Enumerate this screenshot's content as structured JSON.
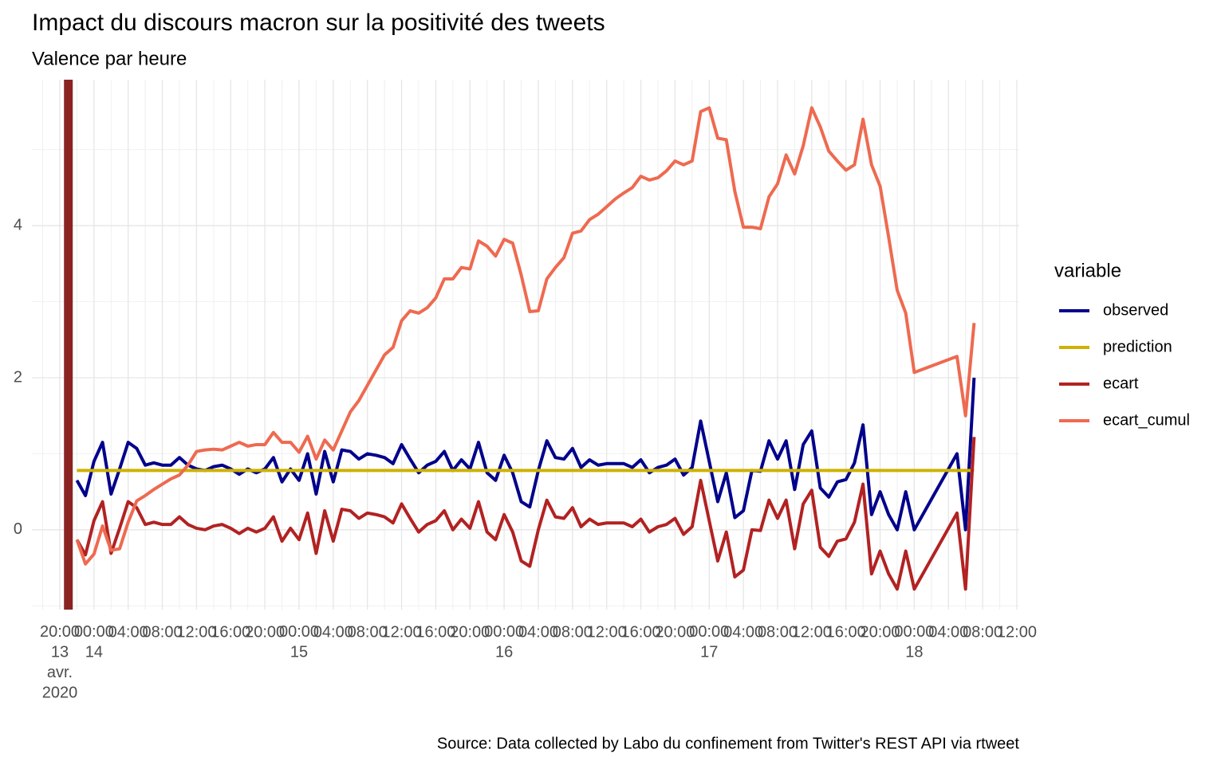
{
  "chart_data": {
    "type": "line",
    "title": "Impact du discours macron sur la positivité des tweets",
    "subtitle": "Valence par heure",
    "caption": "Source: Data collected by Labo du confinement from Twitter's REST API via rtweet",
    "legend_title": "variable",
    "legend": "right",
    "grid": true,
    "x": [
      "2020-04-13 22:00",
      "2020-04-13 23:00",
      "2020-04-14 00:00",
      "2020-04-14 01:00",
      "2020-04-14 02:00",
      "2020-04-14 03:00",
      "2020-04-14 04:00",
      "2020-04-14 05:00",
      "2020-04-14 06:00",
      "2020-04-14 07:00",
      "2020-04-14 08:00",
      "2020-04-14 09:00",
      "2020-04-14 10:00",
      "2020-04-14 11:00",
      "2020-04-14 12:00",
      "2020-04-14 13:00",
      "2020-04-14 14:00",
      "2020-04-14 15:00",
      "2020-04-14 16:00",
      "2020-04-14 17:00",
      "2020-04-14 18:00",
      "2020-04-14 19:00",
      "2020-04-14 20:00",
      "2020-04-14 21:00",
      "2020-04-14 22:00",
      "2020-04-14 23:00",
      "2020-04-15 00:00",
      "2020-04-15 01:00",
      "2020-04-15 02:00",
      "2020-04-15 03:00",
      "2020-04-15 04:00",
      "2020-04-15 05:00",
      "2020-04-15 06:00",
      "2020-04-15 07:00",
      "2020-04-15 08:00",
      "2020-04-15 09:00",
      "2020-04-15 10:00",
      "2020-04-15 11:00",
      "2020-04-15 12:00",
      "2020-04-15 13:00",
      "2020-04-15 14:00",
      "2020-04-15 15:00",
      "2020-04-15 16:00",
      "2020-04-15 17:00",
      "2020-04-15 18:00",
      "2020-04-15 19:00",
      "2020-04-15 20:00",
      "2020-04-15 21:00",
      "2020-04-15 22:00",
      "2020-04-15 23:00",
      "2020-04-16 00:00",
      "2020-04-16 01:00",
      "2020-04-16 02:00",
      "2020-04-16 03:00",
      "2020-04-16 04:00",
      "2020-04-16 05:00",
      "2020-04-16 06:00",
      "2020-04-16 07:00",
      "2020-04-16 08:00",
      "2020-04-16 09:00",
      "2020-04-16 10:00",
      "2020-04-16 11:00",
      "2020-04-16 12:00",
      "2020-04-16 13:00",
      "2020-04-16 14:00",
      "2020-04-16 15:00",
      "2020-04-16 16:00",
      "2020-04-16 17:00",
      "2020-04-16 18:00",
      "2020-04-16 19:00",
      "2020-04-16 20:00",
      "2020-04-16 21:00",
      "2020-04-16 22:00",
      "2020-04-16 23:00",
      "2020-04-17 00:00",
      "2020-04-17 01:00",
      "2020-04-17 02:00",
      "2020-04-17 03:00",
      "2020-04-17 04:00",
      "2020-04-17 05:00",
      "2020-04-17 06:00",
      "2020-04-17 07:00",
      "2020-04-17 08:00",
      "2020-04-17 09:00",
      "2020-04-17 10:00",
      "2020-04-17 11:00",
      "2020-04-17 12:00",
      "2020-04-17 13:00",
      "2020-04-17 14:00",
      "2020-04-17 15:00",
      "2020-04-17 16:00",
      "2020-04-17 17:00",
      "2020-04-17 18:00",
      "2020-04-17 19:00",
      "2020-04-17 20:00",
      "2020-04-17 21:00",
      "2020-04-17 22:00",
      "2020-04-17 23:00",
      "2020-04-18 00:00",
      "2020-04-18 05:00",
      "2020-04-18 06:00",
      "2020-04-18 07:00"
    ],
    "series": [
      {
        "name": "observed",
        "color": "#00008B",
        "values": [
          0.65,
          0.45,
          0.9,
          1.15,
          0.47,
          0.8,
          1.15,
          1.07,
          0.85,
          0.88,
          0.85,
          0.85,
          0.95,
          0.85,
          0.8,
          0.78,
          0.83,
          0.85,
          0.8,
          0.73,
          0.8,
          0.75,
          0.8,
          0.95,
          0.63,
          0.8,
          0.65,
          1.0,
          0.47,
          1.03,
          0.63,
          1.05,
          1.03,
          0.93,
          1.0,
          0.98,
          0.95,
          0.87,
          1.12,
          0.93,
          0.75,
          0.85,
          0.9,
          1.03,
          0.78,
          0.92,
          0.8,
          1.15,
          0.75,
          0.65,
          0.98,
          0.75,
          0.37,
          0.3,
          0.78,
          1.17,
          0.95,
          0.93,
          1.07,
          0.82,
          0.92,
          0.85,
          0.87,
          0.87,
          0.87,
          0.82,
          0.92,
          0.75,
          0.82,
          0.85,
          0.93,
          0.72,
          0.82,
          1.43,
          0.9,
          0.37,
          0.75,
          0.16,
          0.25,
          0.78,
          0.77,
          1.17,
          0.93,
          1.17,
          0.53,
          1.12,
          1.3,
          0.55,
          0.43,
          0.63,
          0.66,
          0.88,
          1.38,
          0.2,
          0.5,
          0.2,
          0.0,
          0.5,
          0.0,
          1.0,
          0.0,
          2.0
        ]
      },
      {
        "name": "prediction",
        "color": "#CDB200",
        "values": [
          0.78,
          0.78,
          0.78,
          0.78,
          0.78,
          0.78,
          0.78,
          0.78,
          0.78,
          0.78,
          0.78,
          0.78,
          0.78,
          0.78,
          0.78,
          0.78,
          0.78,
          0.78,
          0.78,
          0.78,
          0.78,
          0.78,
          0.78,
          0.78,
          0.78,
          0.78,
          0.78,
          0.78,
          0.78,
          0.78,
          0.78,
          0.78,
          0.78,
          0.78,
          0.78,
          0.78,
          0.78,
          0.78,
          0.78,
          0.78,
          0.78,
          0.78,
          0.78,
          0.78,
          0.78,
          0.78,
          0.78,
          0.78,
          0.78,
          0.78,
          0.78,
          0.78,
          0.78,
          0.78,
          0.78,
          0.78,
          0.78,
          0.78,
          0.78,
          0.78,
          0.78,
          0.78,
          0.78,
          0.78,
          0.78,
          0.78,
          0.78,
          0.78,
          0.78,
          0.78,
          0.78,
          0.78,
          0.78,
          0.78,
          0.78,
          0.78,
          0.78,
          0.78,
          0.78,
          0.78,
          0.78,
          0.78,
          0.78,
          0.78,
          0.78,
          0.78,
          0.78,
          0.78,
          0.78,
          0.78,
          0.78,
          0.78,
          0.78,
          0.78,
          0.78,
          0.78,
          0.78,
          0.78,
          0.78,
          0.78,
          0.78,
          0.78
        ]
      },
      {
        "name": "ecart",
        "color": "#B22222",
        "values": [
          -0.13,
          -0.33,
          0.12,
          0.37,
          -0.31,
          0.02,
          0.37,
          0.29,
          0.07,
          0.1,
          0.07,
          0.07,
          0.17,
          0.07,
          0.02,
          0,
          0.05,
          0.07,
          0.02,
          -0.05,
          0.02,
          -0.03,
          0.02,
          0.17,
          -0.15,
          0.02,
          -0.13,
          0.22,
          -0.31,
          0.25,
          -0.15,
          0.27,
          0.25,
          0.15,
          0.22,
          0.2,
          0.17,
          0.09,
          0.34,
          0.15,
          -0.03,
          0.07,
          0.12,
          0.25,
          0,
          0.14,
          0.02,
          0.37,
          -0.03,
          -0.13,
          0.2,
          -0.03,
          -0.41,
          -0.48,
          0,
          0.39,
          0.17,
          0.15,
          0.29,
          0.04,
          0.14,
          0.07,
          0.09,
          0.09,
          0.09,
          0.04,
          0.14,
          -0.03,
          0.04,
          0.07,
          0.15,
          -0.06,
          0.04,
          0.65,
          0.12,
          -0.41,
          -0.03,
          -0.62,
          -0.53,
          0,
          -0.01,
          0.39,
          0.15,
          0.39,
          -0.25,
          0.34,
          0.52,
          -0.23,
          -0.35,
          -0.15,
          -0.12,
          0.1,
          0.6,
          -0.58,
          -0.28,
          -0.58,
          -0.78,
          -0.28,
          -0.78,
          0.22,
          -0.78,
          1.22
        ]
      },
      {
        "name": "ecart_cumul",
        "color": "#EE6A50",
        "values": [
          -0.13,
          -0.45,
          -0.32,
          0.05,
          -0.27,
          -0.25,
          0.1,
          0.38,
          0.45,
          0.53,
          0.6,
          0.67,
          0.72,
          0.85,
          1.03,
          1.05,
          1.06,
          1.05,
          1.1,
          1.15,
          1.1,
          1.12,
          1.12,
          1.28,
          1.15,
          1.15,
          1.02,
          1.23,
          0.93,
          1.18,
          1.05,
          1.3,
          1.55,
          1.7,
          1.9,
          2.1,
          2.3,
          2.4,
          2.75,
          2.88,
          2.85,
          2.92,
          3.05,
          3.3,
          3.3,
          3.45,
          3.43,
          3.8,
          3.73,
          3.6,
          3.82,
          3.77,
          3.35,
          2.87,
          2.88,
          3.3,
          3.45,
          3.58,
          3.9,
          3.93,
          4.08,
          4.15,
          4.25,
          4.35,
          4.43,
          4.5,
          4.65,
          4.6,
          4.63,
          4.72,
          4.85,
          4.8,
          4.85,
          5.5,
          5.55,
          5.15,
          5.13,
          4.45,
          3.98,
          3.98,
          3.96,
          4.38,
          4.55,
          4.93,
          4.68,
          5.05,
          5.55,
          5.3,
          4.98,
          4.85,
          4.73,
          4.8,
          5.4,
          4.8,
          4.52,
          3.85,
          3.15,
          2.85,
          2.07,
          2.28,
          1.5,
          2.72
        ]
      }
    ],
    "vline": {
      "x": "2020-04-13 21:00",
      "color": "#8B2323"
    },
    "xlim": [
      "2020-04-13 16:44",
      "2020-04-18 12:17"
    ],
    "xticks": [
      {
        "value": "2020-04-13 20:00",
        "label": "20:00\n13\navr.\n2020"
      },
      {
        "value": "2020-04-14 00:00",
        "label": "00:00\n14"
      },
      {
        "value": "2020-04-14 04:00",
        "label": "04:00"
      },
      {
        "value": "2020-04-14 08:00",
        "label": "08:00"
      },
      {
        "value": "2020-04-14 12:00",
        "label": "12:00"
      },
      {
        "value": "2020-04-14 16:00",
        "label": "16:00"
      },
      {
        "value": "2020-04-14 20:00",
        "label": "20:00"
      },
      {
        "value": "2020-04-15 00:00",
        "label": "00:00\n15"
      },
      {
        "value": "2020-04-15 04:00",
        "label": "04:00"
      },
      {
        "value": "2020-04-15 08:00",
        "label": "08:00"
      },
      {
        "value": "2020-04-15 12:00",
        "label": "12:00"
      },
      {
        "value": "2020-04-15 16:00",
        "label": "16:00"
      },
      {
        "value": "2020-04-15 20:00",
        "label": "20:00"
      },
      {
        "value": "2020-04-16 00:00",
        "label": "00:00\n16"
      },
      {
        "value": "2020-04-16 04:00",
        "label": "04:00"
      },
      {
        "value": "2020-04-16 08:00",
        "label": "08:00"
      },
      {
        "value": "2020-04-16 12:00",
        "label": "12:00"
      },
      {
        "value": "2020-04-16 16:00",
        "label": "16:00"
      },
      {
        "value": "2020-04-16 20:00",
        "label": "20:00"
      },
      {
        "value": "2020-04-17 00:00",
        "label": "00:00\n17"
      },
      {
        "value": "2020-04-17 04:00",
        "label": "04:00"
      },
      {
        "value": "2020-04-17 08:00",
        "label": "08:00"
      },
      {
        "value": "2020-04-17 12:00",
        "label": "12:00"
      },
      {
        "value": "2020-04-17 16:00",
        "label": "16:00"
      },
      {
        "value": "2020-04-17 20:00",
        "label": "20:00"
      },
      {
        "value": "2020-04-18 00:00",
        "label": "00:00\n18"
      },
      {
        "value": "2020-04-18 04:00",
        "label": "04:00"
      },
      {
        "value": "2020-04-18 08:00",
        "label": "08:00"
      },
      {
        "value": "2020-04-18 12:00",
        "label": "12:00"
      }
    ],
    "ylim": [
      -1.05,
      5.92
    ],
    "yticks": [
      0,
      2,
      4
    ]
  }
}
